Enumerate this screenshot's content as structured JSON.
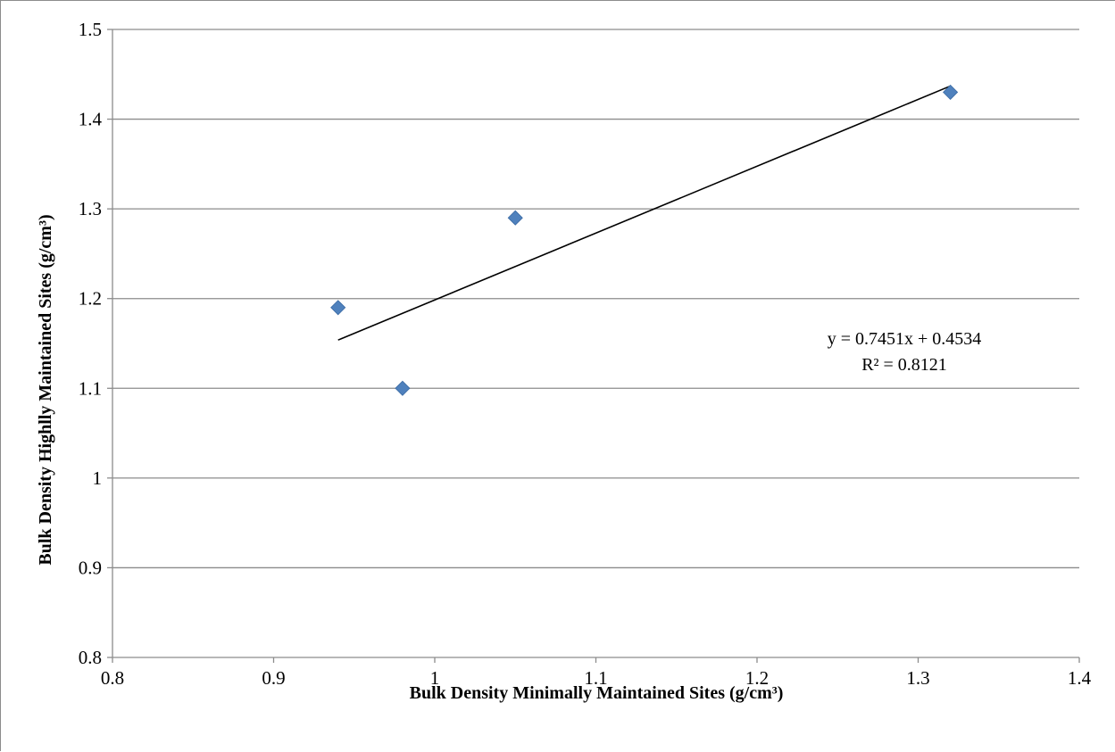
{
  "chart_data": {
    "type": "scatter",
    "title": "",
    "xlabel": "Bulk Density Minimally Maintained Sites (g/cm³)",
    "ylabel": "Bulk Density Highlly Maintained Sites (g/cm³)",
    "xlim": [
      0.8,
      1.4
    ],
    "ylim": [
      0.8,
      1.5
    ],
    "xticks": [
      "0.8",
      "0.9",
      "1",
      "1.1",
      "1.2",
      "1.3",
      "1.4"
    ],
    "yticks": [
      "0.8",
      "0.9",
      "1",
      "1.1",
      "1.2",
      "1.3",
      "1.4",
      "1.5"
    ],
    "grid": "horizontal",
    "series": [
      {
        "marker": "diamond",
        "color": "#4f81bd",
        "points": [
          {
            "x": 0.94,
            "y": 1.19
          },
          {
            "x": 0.98,
            "y": 1.1
          },
          {
            "x": 1.05,
            "y": 1.29
          },
          {
            "x": 1.32,
            "y": 1.43
          }
        ]
      }
    ],
    "trendline": {
      "type": "linear",
      "slope": 0.7451,
      "intercept": 0.4534,
      "x_range": [
        0.94,
        1.32
      ],
      "color": "#000000",
      "equation_text": "y = 0.7451x + 0.4534",
      "r2_text": "R² = 0.8121"
    }
  }
}
